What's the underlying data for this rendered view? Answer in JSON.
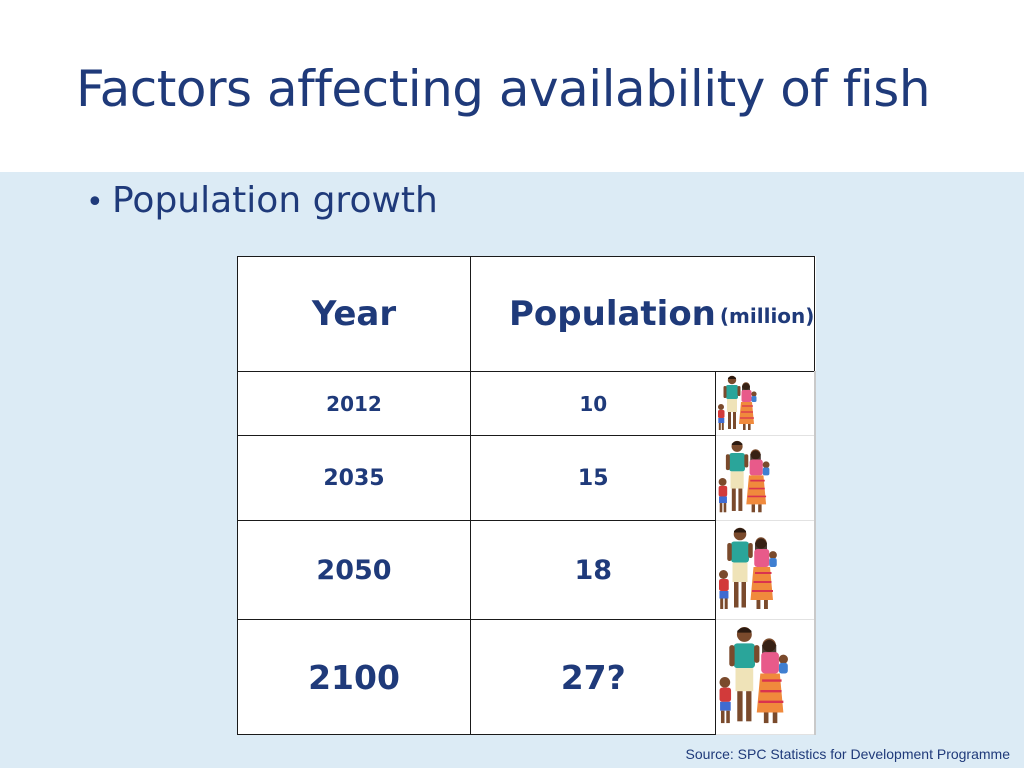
{
  "slide": {
    "title": "Factors affecting availability of fish",
    "bullet": "Population growth"
  },
  "table": {
    "header": {
      "year": "Year",
      "population": "Population",
      "unit": "(million)"
    },
    "rows": [
      {
        "year": "2012",
        "population": "10",
        "icon": "family-icon"
      },
      {
        "year": "2035",
        "population": "15",
        "icon": "family-icon"
      },
      {
        "year": "2050",
        "population": "18",
        "icon": "family-icon"
      },
      {
        "year": "2100",
        "population": "27?",
        "icon": "family-icon"
      }
    ]
  },
  "source": "Source: SPC Statistics for Development Programme",
  "colors": {
    "accent": "#1f3a7a",
    "content_background": "#dcebf5"
  }
}
